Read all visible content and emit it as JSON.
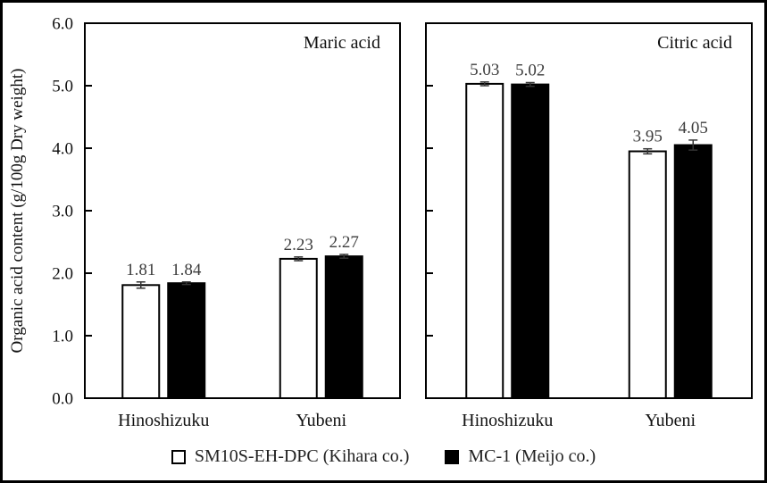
{
  "figure": {
    "ylabel": "Organic acid content (g/100g Dry weight)",
    "background": "#ffffff",
    "border_color": "#000000",
    "text_color": "#111111",
    "value_label_color": "#3d3d3d"
  },
  "chart_data": [
    {
      "type": "bar",
      "title": "Maric acid",
      "categories": [
        "Hinoshizuku",
        "Yubeni"
      ],
      "series": [
        {
          "name": "SM10S-EH-DPC (Kihara co.)",
          "fill": "#ffffff",
          "stroke": "#000000",
          "values": [
            1.81,
            2.23
          ],
          "errors": [
            0.05,
            0.03
          ]
        },
        {
          "name": "MC-1 (Meijo co.)",
          "fill": "#000000",
          "stroke": "#000000",
          "values": [
            1.84,
            2.27
          ],
          "errors": [
            0.02,
            0.03
          ]
        }
      ],
      "ylim": [
        0,
        6
      ],
      "ytick_labels": [
        "0.0",
        "1.0",
        "2.0",
        "3.0",
        "4.0",
        "5.0",
        "6.0"
      ],
      "show_ytick_labels": true,
      "grid": false,
      "value_labels": true
    },
    {
      "type": "bar",
      "title": "Citric acid",
      "categories": [
        "Hinoshizuku",
        "Yubeni"
      ],
      "series": [
        {
          "name": "SM10S-EH-DPC (Kihara co.)",
          "fill": "#ffffff",
          "stroke": "#000000",
          "values": [
            5.03,
            3.95
          ],
          "errors": [
            0.03,
            0.04
          ]
        },
        {
          "name": "MC-1 (Meijo co.)",
          "fill": "#000000",
          "stroke": "#000000",
          "values": [
            5.02,
            4.05
          ],
          "errors": [
            0.03,
            0.08
          ]
        }
      ],
      "ylim": [
        0,
        6
      ],
      "ytick_labels": [
        "0.0",
        "1.0",
        "2.0",
        "3.0",
        "4.0",
        "5.0",
        "6.0"
      ],
      "show_ytick_labels": false,
      "grid": false,
      "value_labels": true
    }
  ],
  "legend": {
    "position": "bottom",
    "items": [
      {
        "label": "SM10S-EH-DPC (Kihara co.)",
        "fill": "#ffffff"
      },
      {
        "label": "MC-1 (Meijo co.)",
        "fill": "#000000"
      }
    ]
  }
}
